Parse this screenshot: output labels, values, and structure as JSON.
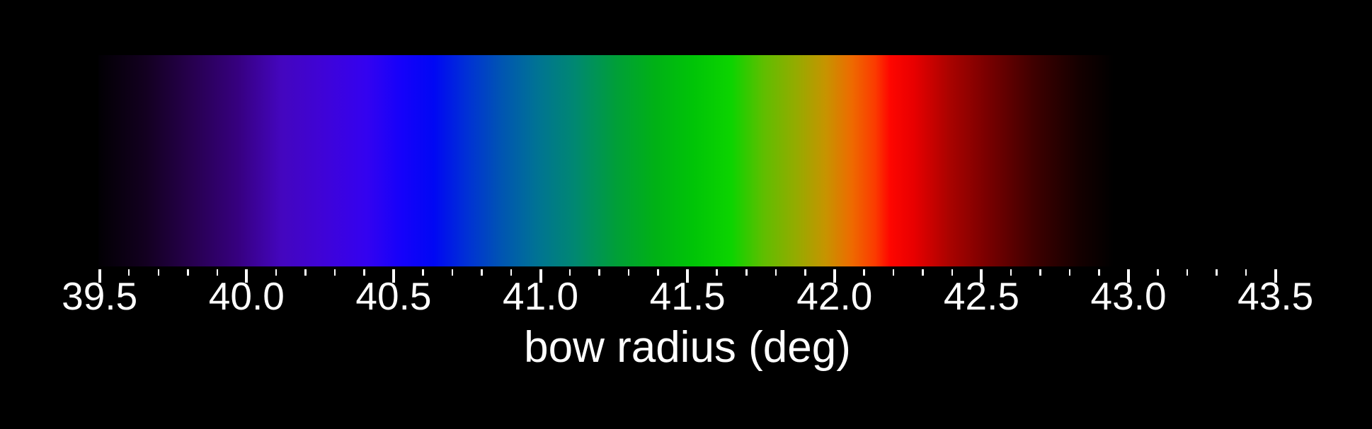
{
  "chart_data": {
    "type": "heatmap",
    "title": "",
    "xlabel": "bow radius (deg)",
    "ylabel": "",
    "x_range": [
      39.5,
      43.5
    ],
    "x_major_tick_step": 0.5,
    "x_minor_tick_step": 0.1,
    "tick_labels": [
      "39.5",
      "40.0",
      "40.5",
      "41.0",
      "41.5",
      "42.0",
      "42.5",
      "43.0",
      "43.5"
    ],
    "grid": false,
    "legend": "none",
    "background_color": "#000000",
    "text_color": "#ffffff",
    "tick_color": "#ffffff",
    "description": "Rainbow color spectrum rendered as a horizontal band versus bow radius; black below 39.5 deg, violet-blue near 40.2-40.6, blue-teal near 40.8-41.1, green near 41.3-41.7, yellow-orange near 41.9-42.1, bright red near 42.2, fading through dark red to black by ~42.95 deg",
    "color_stops": [
      {
        "x": 39.5,
        "color": "#020004"
      },
      {
        "x": 39.66,
        "color": "#130020"
      },
      {
        "x": 39.81,
        "color": "#26004C"
      },
      {
        "x": 39.97,
        "color": "#36007E"
      },
      {
        "x": 40.12,
        "color": "#4406BE"
      },
      {
        "x": 40.27,
        "color": "#3F03D8"
      },
      {
        "x": 40.41,
        "color": "#3402F0"
      },
      {
        "x": 40.53,
        "color": "#1501FA"
      },
      {
        "x": 40.64,
        "color": "#0007F4"
      },
      {
        "x": 40.75,
        "color": "#0030D6"
      },
      {
        "x": 40.87,
        "color": "#0055B2"
      },
      {
        "x": 40.99,
        "color": "#007394"
      },
      {
        "x": 41.12,
        "color": "#008871"
      },
      {
        "x": 41.26,
        "color": "#009F38"
      },
      {
        "x": 41.39,
        "color": "#00B116"
      },
      {
        "x": 41.52,
        "color": "#00C407"
      },
      {
        "x": 41.65,
        "color": "#0CD400"
      },
      {
        "x": 41.76,
        "color": "#5FBE00"
      },
      {
        "x": 41.87,
        "color": "#94AB00"
      },
      {
        "x": 41.97,
        "color": "#C69400"
      },
      {
        "x": 42.06,
        "color": "#EE6A00"
      },
      {
        "x": 42.14,
        "color": "#FB3A00"
      },
      {
        "x": 42.19,
        "color": "#FE0600"
      },
      {
        "x": 42.27,
        "color": "#E80000"
      },
      {
        "x": 42.39,
        "color": "#AA0300"
      },
      {
        "x": 42.53,
        "color": "#750000"
      },
      {
        "x": 42.68,
        "color": "#3E0000"
      },
      {
        "x": 42.83,
        "color": "#150000"
      },
      {
        "x": 42.95,
        "color": "#000000"
      },
      {
        "x": 43.5,
        "color": "#000000"
      }
    ]
  }
}
